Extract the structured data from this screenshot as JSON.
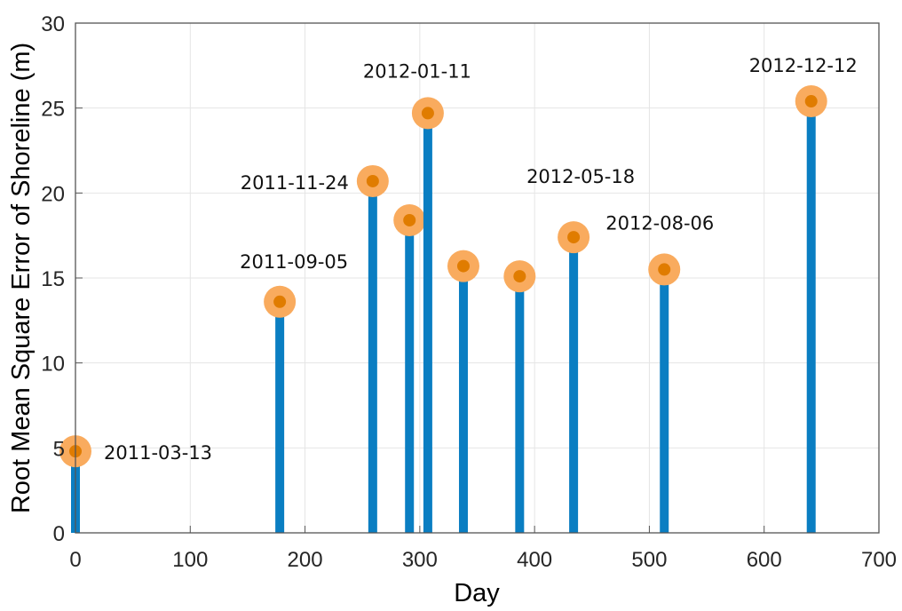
{
  "chart_data": {
    "type": "stem",
    "title": "",
    "xlabel": "Day",
    "ylabel": "Root Mean Square Error of Shoreline (m)",
    "xlim": [
      0,
      700
    ],
    "ylim": [
      0,
      30
    ],
    "xticks": [
      0,
      100,
      200,
      300,
      400,
      500,
      600,
      700
    ],
    "yticks": [
      0,
      5,
      10,
      15,
      20,
      25,
      30
    ],
    "grid": true,
    "x": [
      0,
      178,
      259,
      291,
      307,
      338,
      387,
      434,
      513,
      641
    ],
    "values": [
      4.8,
      13.6,
      20.7,
      18.4,
      24.7,
      15.7,
      15.1,
      17.4,
      15.5,
      25.4
    ],
    "annotations": [
      {
        "text": "2011-03-13",
        "point": 0
      },
      {
        "text": "2011-09-05",
        "point": 1
      },
      {
        "text": "2011-11-24",
        "point": 2
      },
      {
        "text": "2012-01-11",
        "point": 4
      },
      {
        "text": "2012-05-18",
        "point": 7
      },
      {
        "text": "2012-08-06",
        "point": 8
      },
      {
        "text": "2012-12-12",
        "point": 9
      }
    ],
    "colors": {
      "stem": "#0a7ec2",
      "marker_outer": "#f9ab5e",
      "marker_inner": "#e07c00",
      "grid": "#e5e5e5",
      "axis": "#555555"
    }
  }
}
